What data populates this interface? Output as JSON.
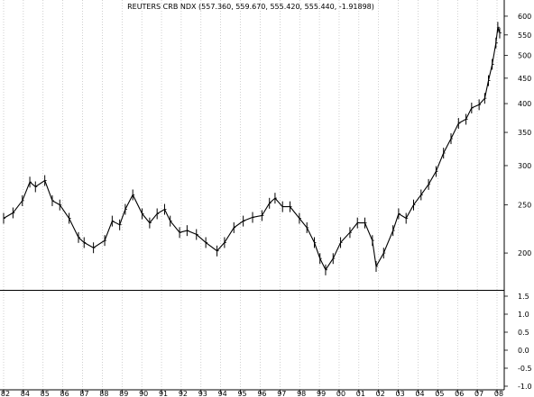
{
  "chart_data": [
    {
      "type": "bar",
      "subtype": "ohlc",
      "title": "REUTERS CRB NDX (557.360, 559.670, 555.420, 555.440, -1.91898)",
      "y_scale": "log",
      "ylim": [
        170,
        610
      ],
      "y_ticks": [
        {
          "value": 600,
          "label": "600"
        },
        {
          "value": 550,
          "label": "550"
        },
        {
          "value": 500,
          "label": "500"
        },
        {
          "value": 450,
          "label": "450"
        },
        {
          "value": 400,
          "label": "400"
        },
        {
          "value": 350,
          "label": "350"
        },
        {
          "value": 300,
          "label": "300"
        },
        {
          "value": 250,
          "label": "250"
        },
        {
          "value": 200,
          "label": "200"
        }
      ],
      "x_ticks": [
        "82",
        "84",
        "85",
        "86",
        "87",
        "88",
        "89",
        "90",
        "91",
        "92",
        "93",
        "94",
        "95",
        "96",
        "97",
        "98",
        "99",
        "00",
        "01",
        "02",
        "03",
        "04",
        "05",
        "06",
        "07",
        "08"
      ],
      "grid": true,
      "x": [
        1982.0,
        1982.5,
        1983.0,
        1983.4,
        1983.7,
        1984.2,
        1984.6,
        1985.0,
        1985.5,
        1986.0,
        1986.3,
        1986.8,
        1987.4,
        1987.8,
        1988.2,
        1988.5,
        1988.9,
        1989.4,
        1989.8,
        1990.2,
        1990.6,
        1990.9,
        1991.4,
        1991.8,
        1992.3,
        1992.8,
        1993.4,
        1993.8,
        1994.3,
        1994.8,
        1995.3,
        1995.8,
        1996.2,
        1996.5,
        1996.9,
        1997.3,
        1997.8,
        1998.2,
        1998.6,
        1998.9,
        1999.2,
        1999.6,
        2000.0,
        2000.5,
        2000.9,
        2001.3,
        2001.7,
        2001.9,
        2002.3,
        2002.8,
        2003.1,
        2003.5,
        2003.9,
        2004.3,
        2004.7,
        2005.1,
        2005.5,
        2005.9,
        2006.3,
        2006.7,
        2007.0,
        2007.4,
        2007.7,
        2007.9,
        2008.1,
        2008.3,
        2008.4,
        2008.5
      ],
      "series": [
        {
          "values": [
            235,
            241,
            255,
            278,
            272,
            280,
            255,
            250,
            235,
            215,
            210,
            205,
            212,
            232,
            228,
            245,
            262,
            240,
            230,
            240,
            245,
            232,
            220,
            222,
            218,
            210,
            202,
            210,
            225,
            232,
            236,
            238,
            252,
            258,
            248,
            248,
            235,
            225,
            210,
            195,
            185,
            195,
            210,
            220,
            230,
            230,
            212,
            188,
            200,
            222,
            240,
            235,
            250,
            262,
            275,
            292,
            318,
            340,
            365,
            372,
            392,
            398,
            410,
            445,
            480,
            530,
            570,
            555
          ]
        }
      ]
    },
    {
      "type": "line",
      "title": "",
      "ylim": [
        -1.1,
        1.6
      ],
      "y_ticks": [
        {
          "value": 1.5,
          "label": "1.5"
        },
        {
          "value": 1.0,
          "label": "1.0"
        },
        {
          "value": 0.5,
          "label": "0.5"
        },
        {
          "value": 0.0,
          "label": "0.0"
        },
        {
          "value": -0.5,
          "label": "-0.5"
        },
        {
          "value": -1.0,
          "label": "-1.0"
        }
      ],
      "grid": true,
      "series": []
    }
  ]
}
